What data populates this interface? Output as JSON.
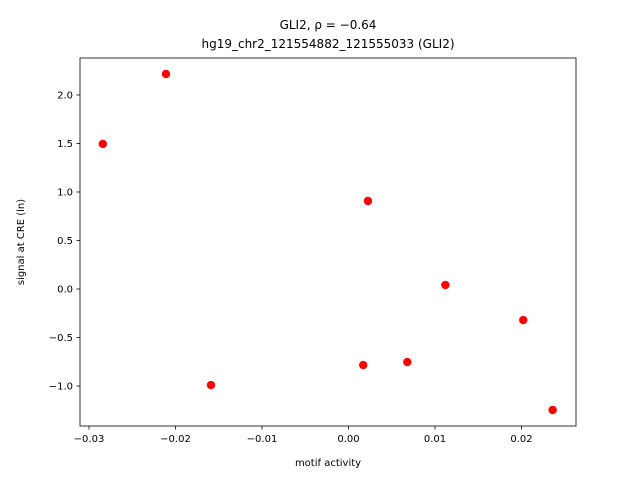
{
  "chart_data": {
    "type": "scatter",
    "title": "GLI2, ρ = −0.64",
    "subtitle": "hg19_chr2_121554882_121555033 (GLI2)",
    "x_label": "motif activity",
    "y_label": "signal at CRE (ln)",
    "color": "#ff0000",
    "x": [
      -0.0211,
      -0.0284,
      0.00225,
      0.0112,
      0.0202,
      -0.0159,
      0.0017,
      0.0068,
      0.0236
    ],
    "values": [
      2.216,
      1.495,
      0.907,
      0.041,
      -0.32,
      -0.99,
      -0.784,
      -0.753,
      -1.247
    ],
    "xlim": [
      -0.03104,
      0.0263
    ],
    "ylim": [
      -1.412,
      2.381
    ],
    "xticks": [
      {
        "value": -0.03,
        "label": "−0.03"
      },
      {
        "value": -0.02,
        "label": "−0.02"
      },
      {
        "value": -0.01,
        "label": "−0.01"
      },
      {
        "value": 0,
        "label": "0.00"
      },
      {
        "value": 0.01,
        "label": "0.01"
      },
      {
        "value": 0.02,
        "label": "0.02"
      }
    ],
    "yticks": [
      {
        "value": -1,
        "label": "−1.0"
      },
      {
        "value": -0.5,
        "label": "−0.5"
      },
      {
        "value": 0,
        "label": "0.0"
      },
      {
        "value": 0.5,
        "label": "0.5"
      },
      {
        "value": 1,
        "label": "1.0"
      },
      {
        "value": 1.5,
        "label": "1.5"
      },
      {
        "value": 2,
        "label": "2.0"
      }
    ],
    "grid": false
  }
}
